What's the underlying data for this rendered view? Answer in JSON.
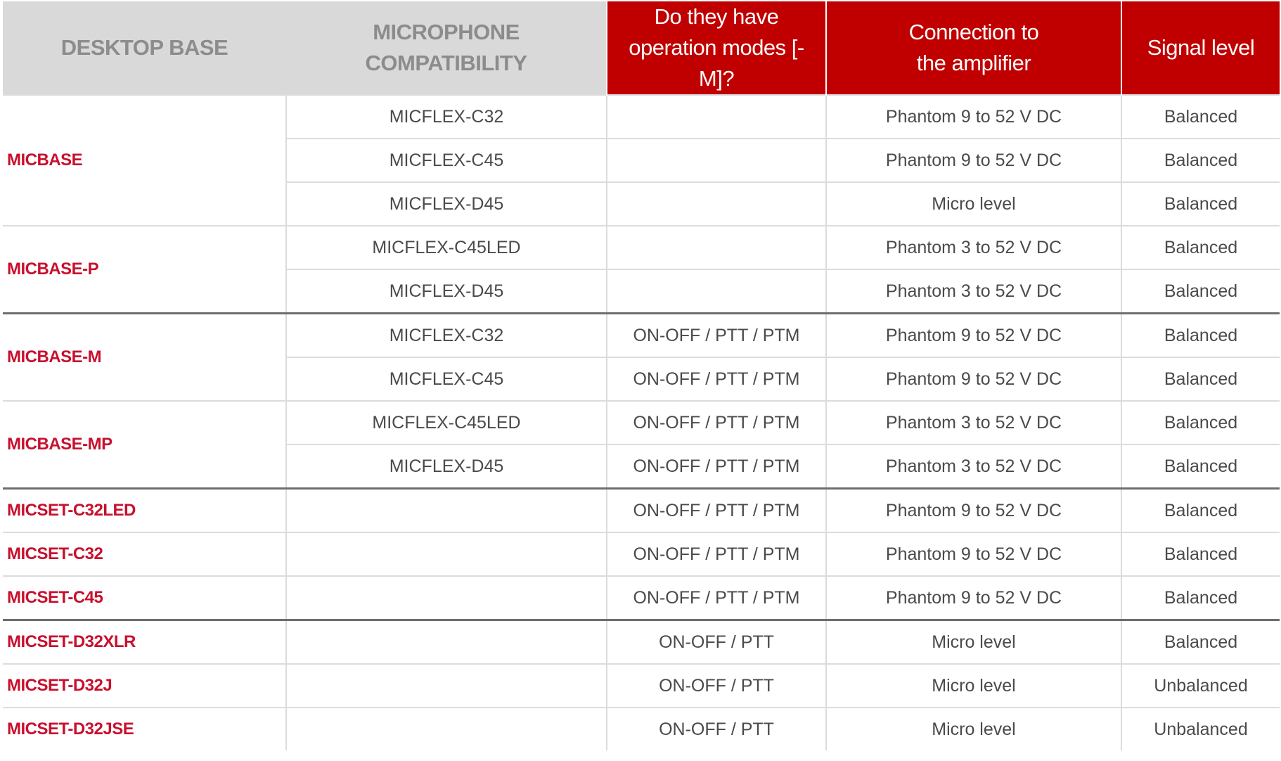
{
  "headers": [
    "DESKTOP BASE",
    "MICROPHONE COMPATIBILITY",
    "Do they have operation  modes [-M]?",
    "Connection to the amplifier",
    "Signal level"
  ],
  "colors": {
    "header_gray": "#d9d9d9",
    "header_red": "#c00000",
    "base_label": "#c8102e"
  },
  "groups": [
    {
      "base": "MICBASE",
      "rows": [
        {
          "mic": "MICFLEX-C32",
          "modes": "",
          "connection": "Phantom 9 to 52 V DC",
          "signal": "Balanced"
        },
        {
          "mic": "MICFLEX-C45",
          "modes": "",
          "connection": "Phantom 9 to 52 V DC",
          "signal": "Balanced"
        },
        {
          "mic": "MICFLEX-D45",
          "modes": "",
          "connection": "Micro level",
          "signal": "Balanced"
        }
      ]
    },
    {
      "base": "MICBASE-P",
      "rows": [
        {
          "mic": "MICFLEX-C45LED",
          "modes": "",
          "connection": "Phantom 3 to 52 V DC",
          "signal": "Balanced"
        },
        {
          "mic": "MICFLEX-D45",
          "modes": "",
          "connection": "Phantom 3 to 52 V DC",
          "signal": "Balanced"
        }
      ]
    },
    {
      "base": "MICBASE-M",
      "thick": true,
      "rows": [
        {
          "mic": "MICFLEX-C32",
          "modes": "ON-OFF / PTT / PTM",
          "connection": "Phantom 9 to 52 V DC",
          "signal": "Balanced"
        },
        {
          "mic": "MICFLEX-C45",
          "modes": "ON-OFF / PTT / PTM",
          "connection": "Phantom 9 to 52 V DC",
          "signal": "Balanced"
        }
      ]
    },
    {
      "base": "MICBASE-MP",
      "rows": [
        {
          "mic": "MICFLEX-C45LED",
          "modes": "ON-OFF / PTT / PTM",
          "connection": "Phantom 3 to 52 V DC",
          "signal": "Balanced"
        },
        {
          "mic": "MICFLEX-D45",
          "modes": "ON-OFF / PTT / PTM",
          "connection": "Phantom 3 to 52 V DC",
          "signal": "Balanced"
        }
      ]
    },
    {
      "base": "MICSET-C32LED",
      "thick": true,
      "rows": [
        {
          "mic": "",
          "modes": "ON-OFF / PTT / PTM",
          "connection": "Phantom 9 to 52 V DC",
          "signal": "Balanced"
        }
      ]
    },
    {
      "base": "MICSET-C32",
      "rows": [
        {
          "mic": "",
          "modes": "ON-OFF / PTT / PTM",
          "connection": "Phantom 9 to 52 V DC",
          "signal": "Balanced"
        }
      ]
    },
    {
      "base": "MICSET-C45",
      "rows": [
        {
          "mic": "",
          "modes": "ON-OFF / PTT / PTM",
          "connection": "Phantom 9 to 52 V DC",
          "signal": "Balanced"
        }
      ]
    },
    {
      "base": "MICSET-D32XLR",
      "thick": true,
      "rows": [
        {
          "mic": "",
          "modes": "ON-OFF / PTT",
          "connection": "Micro level",
          "signal": "Balanced"
        }
      ]
    },
    {
      "base": "MICSET-D32J",
      "rows": [
        {
          "mic": "",
          "modes": "ON-OFF / PTT",
          "connection": "Micro level",
          "signal": "Unbalanced"
        }
      ]
    },
    {
      "base": "MICSET-D32JSE",
      "rows": [
        {
          "mic": "",
          "modes": "ON-OFF / PTT",
          "connection": "Micro level",
          "signal": "Unbalanced"
        }
      ]
    }
  ]
}
